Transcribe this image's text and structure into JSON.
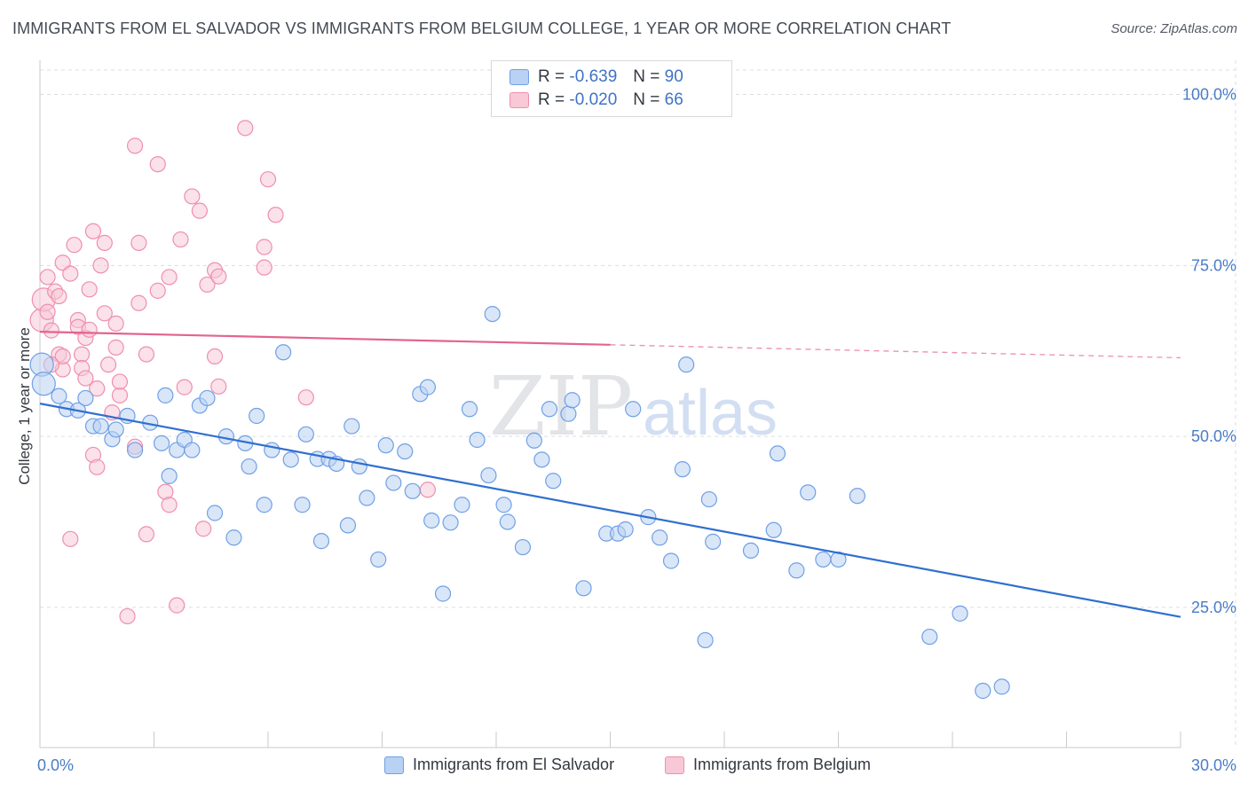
{
  "title": "IMMIGRANTS FROM EL SALVADOR VS IMMIGRANTS FROM BELGIUM COLLEGE, 1 YEAR OR MORE CORRELATION CHART",
  "source": "Source: ZipAtlas.com",
  "watermark": {
    "zip": "ZIP",
    "atlas": "atlas"
  },
  "legend": {
    "r_label": "R =",
    "n_label": "N =",
    "series": [
      {
        "r": "-0.639",
        "n": "90"
      },
      {
        "r": "-0.020",
        "n": "66"
      }
    ]
  },
  "chart_data": {
    "type": "scatter",
    "title": "IMMIGRANTS FROM EL SALVADOR VS IMMIGRANTS FROM BELGIUM COLLEGE, 1 YEAR OR MORE CORRELATION CHART",
    "xlabel": "",
    "ylabel": "College, 1 year or more",
    "xlim": [
      0,
      30
    ],
    "ylim": [
      4.5,
      105
    ],
    "x_tick_labels": [
      "0.0%",
      "30.0%"
    ],
    "y_ticks": [
      25,
      50,
      75,
      100
    ],
    "y_tick_labels": [
      "25.0%",
      "50.0%",
      "75.0%",
      "100.0%"
    ],
    "grid": true,
    "legend_position": "top-center",
    "colors": {
      "el_salvador": "#6fa0e6",
      "el_salvador_fill": "#b9d1f3",
      "el_salvador_line": "#2f6fd0",
      "belgium": "#ef8fae",
      "belgium_fill": "#f8c8d7",
      "belgium_line": "#e2648f"
    },
    "series": [
      {
        "name": "Immigrants from El Salvador",
        "r": -0.639,
        "n": 90,
        "trend": {
          "x": [
            0,
            30
          ],
          "y": [
            54.8,
            23.6
          ],
          "solid_to": 30
        },
        "points": [
          [
            0.05,
            60.5
          ],
          [
            0.1,
            57.7
          ],
          [
            0.5,
            55.9
          ],
          [
            0.7,
            54.0
          ],
          [
            1.0,
            53.8
          ],
          [
            1.2,
            55.6
          ],
          [
            1.4,
            51.5
          ],
          [
            1.6,
            51.5
          ],
          [
            1.9,
            49.6
          ],
          [
            2.0,
            51.0
          ],
          [
            2.3,
            53.0
          ],
          [
            2.5,
            48.0
          ],
          [
            2.9,
            52.0
          ],
          [
            3.2,
            49.0
          ],
          [
            3.3,
            56.0
          ],
          [
            3.4,
            44.2
          ],
          [
            3.6,
            48.0
          ],
          [
            3.8,
            49.5
          ],
          [
            4.0,
            48.0
          ],
          [
            4.2,
            54.5
          ],
          [
            4.4,
            55.6
          ],
          [
            4.6,
            38.8
          ],
          [
            4.9,
            50.0
          ],
          [
            5.1,
            35.2
          ],
          [
            5.4,
            49.0
          ],
          [
            5.5,
            45.6
          ],
          [
            5.7,
            53.0
          ],
          [
            5.9,
            40.0
          ],
          [
            6.1,
            48.0
          ],
          [
            6.4,
            62.3
          ],
          [
            6.6,
            46.6
          ],
          [
            6.9,
            40.0
          ],
          [
            7.0,
            50.3
          ],
          [
            7.3,
            46.7
          ],
          [
            7.4,
            34.7
          ],
          [
            7.6,
            46.7
          ],
          [
            7.8,
            46.0
          ],
          [
            8.1,
            37.0
          ],
          [
            8.2,
            51.5
          ],
          [
            8.4,
            45.6
          ],
          [
            8.6,
            41.0
          ],
          [
            8.9,
            32.0
          ],
          [
            9.1,
            48.7
          ],
          [
            9.3,
            43.2
          ],
          [
            9.6,
            47.8
          ],
          [
            9.8,
            42.0
          ],
          [
            10.0,
            56.2
          ],
          [
            10.2,
            57.2
          ],
          [
            10.3,
            37.7
          ],
          [
            10.6,
            27.0
          ],
          [
            10.8,
            37.4
          ],
          [
            11.1,
            40.0
          ],
          [
            11.3,
            54.0
          ],
          [
            11.5,
            49.5
          ],
          [
            11.8,
            44.3
          ],
          [
            11.9,
            67.9
          ],
          [
            12.2,
            40.0
          ],
          [
            12.3,
            37.5
          ],
          [
            12.7,
            33.8
          ],
          [
            13.0,
            49.4
          ],
          [
            13.2,
            46.6
          ],
          [
            13.4,
            54.0
          ],
          [
            13.5,
            43.5
          ],
          [
            13.9,
            53.3
          ],
          [
            14.0,
            55.3
          ],
          [
            14.3,
            27.8
          ],
          [
            14.9,
            35.8
          ],
          [
            15.2,
            35.8
          ],
          [
            15.4,
            36.4
          ],
          [
            15.6,
            54.0
          ],
          [
            16.0,
            38.2
          ],
          [
            16.3,
            35.2
          ],
          [
            16.6,
            31.8
          ],
          [
            16.9,
            45.2
          ],
          [
            17.0,
            60.5
          ],
          [
            17.5,
            20.2
          ],
          [
            17.6,
            40.8
          ],
          [
            17.7,
            34.6
          ],
          [
            18.7,
            33.3
          ],
          [
            19.3,
            36.3
          ],
          [
            19.4,
            47.5
          ],
          [
            19.9,
            30.4
          ],
          [
            20.2,
            41.8
          ],
          [
            20.6,
            32.0
          ],
          [
            21.0,
            32.0
          ],
          [
            21.5,
            41.3
          ],
          [
            23.4,
            20.7
          ],
          [
            24.2,
            24.1
          ],
          [
            24.8,
            12.8
          ],
          [
            25.3,
            13.4
          ]
        ]
      },
      {
        "name": "Immigrants from Belgium",
        "r": -0.02,
        "n": 66,
        "trend": {
          "x": [
            0,
            30
          ],
          "y": [
            65.3,
            61.5
          ],
          "solid_to": 15
        },
        "points": [
          [
            0.05,
            67.0
          ],
          [
            0.1,
            70.0
          ],
          [
            0.2,
            73.3
          ],
          [
            0.2,
            68.2
          ],
          [
            0.3,
            65.5
          ],
          [
            0.4,
            71.2
          ],
          [
            0.5,
            70.5
          ],
          [
            0.5,
            62.0
          ],
          [
            0.6,
            59.8
          ],
          [
            0.6,
            75.4
          ],
          [
            0.6,
            61.7
          ],
          [
            0.8,
            35.0
          ],
          [
            0.8,
            73.8
          ],
          [
            1.0,
            67.0
          ],
          [
            1.0,
            66.0
          ],
          [
            1.1,
            62.0
          ],
          [
            1.1,
            60.0
          ],
          [
            1.2,
            58.5
          ],
          [
            1.2,
            64.4
          ],
          [
            1.3,
            65.6
          ],
          [
            1.4,
            47.3
          ],
          [
            1.4,
            80.0
          ],
          [
            1.5,
            45.5
          ],
          [
            1.6,
            75.0
          ],
          [
            1.7,
            68.0
          ],
          [
            1.8,
            60.5
          ],
          [
            1.9,
            53.5
          ],
          [
            2.0,
            66.5
          ],
          [
            2.1,
            56.0
          ],
          [
            2.1,
            58.0
          ],
          [
            2.3,
            23.7
          ],
          [
            2.5,
            48.5
          ],
          [
            2.5,
            92.5
          ],
          [
            2.6,
            78.3
          ],
          [
            2.6,
            69.5
          ],
          [
            2.8,
            62.0
          ],
          [
            2.8,
            35.7
          ],
          [
            3.1,
            71.3
          ],
          [
            3.1,
            89.8
          ],
          [
            3.3,
            41.9
          ],
          [
            3.4,
            73.3
          ],
          [
            3.4,
            40.0
          ],
          [
            3.6,
            25.3
          ],
          [
            3.7,
            78.8
          ],
          [
            3.8,
            57.2
          ],
          [
            4.0,
            85.1
          ],
          [
            4.2,
            83.0
          ],
          [
            4.3,
            36.5
          ],
          [
            4.4,
            72.2
          ],
          [
            4.6,
            74.3
          ],
          [
            4.6,
            61.7
          ],
          [
            4.7,
            57.3
          ],
          [
            4.7,
            73.4
          ],
          [
            5.4,
            95.1
          ],
          [
            5.9,
            77.7
          ],
          [
            5.9,
            74.7
          ],
          [
            6.0,
            87.6
          ],
          [
            6.2,
            82.4
          ],
          [
            7.0,
            55.7
          ],
          [
            10.2,
            42.2
          ],
          [
            0.9,
            78.0
          ],
          [
            1.7,
            78.3
          ],
          [
            1.5,
            57.0
          ],
          [
            0.3,
            60.5
          ],
          [
            1.3,
            71.5
          ],
          [
            2.0,
            63.0
          ]
        ]
      }
    ]
  }
}
